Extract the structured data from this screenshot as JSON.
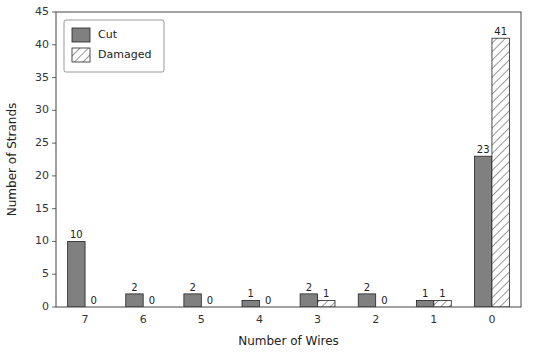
{
  "chart_data": {
    "type": "bar",
    "xlabel": "Number of Wires",
    "ylabel": "Number of Strands",
    "categories": [
      "7",
      "6",
      "5",
      "4",
      "3",
      "2",
      "1",
      "0"
    ],
    "series": [
      {
        "name": "Cut",
        "color": "#808080",
        "values": [
          10,
          2,
          2,
          1,
          2,
          2,
          1,
          23
        ]
      },
      {
        "name": "Damaged",
        "color": "#ffffff",
        "values": [
          0,
          0,
          0,
          0,
          1,
          0,
          1,
          41
        ]
      }
    ],
    "ylim": [
      0,
      45
    ],
    "yticks": [
      0,
      5,
      10,
      15,
      20,
      25,
      30,
      35,
      40,
      45
    ],
    "data_labels": true,
    "legend": "upper left",
    "grid": false
  }
}
